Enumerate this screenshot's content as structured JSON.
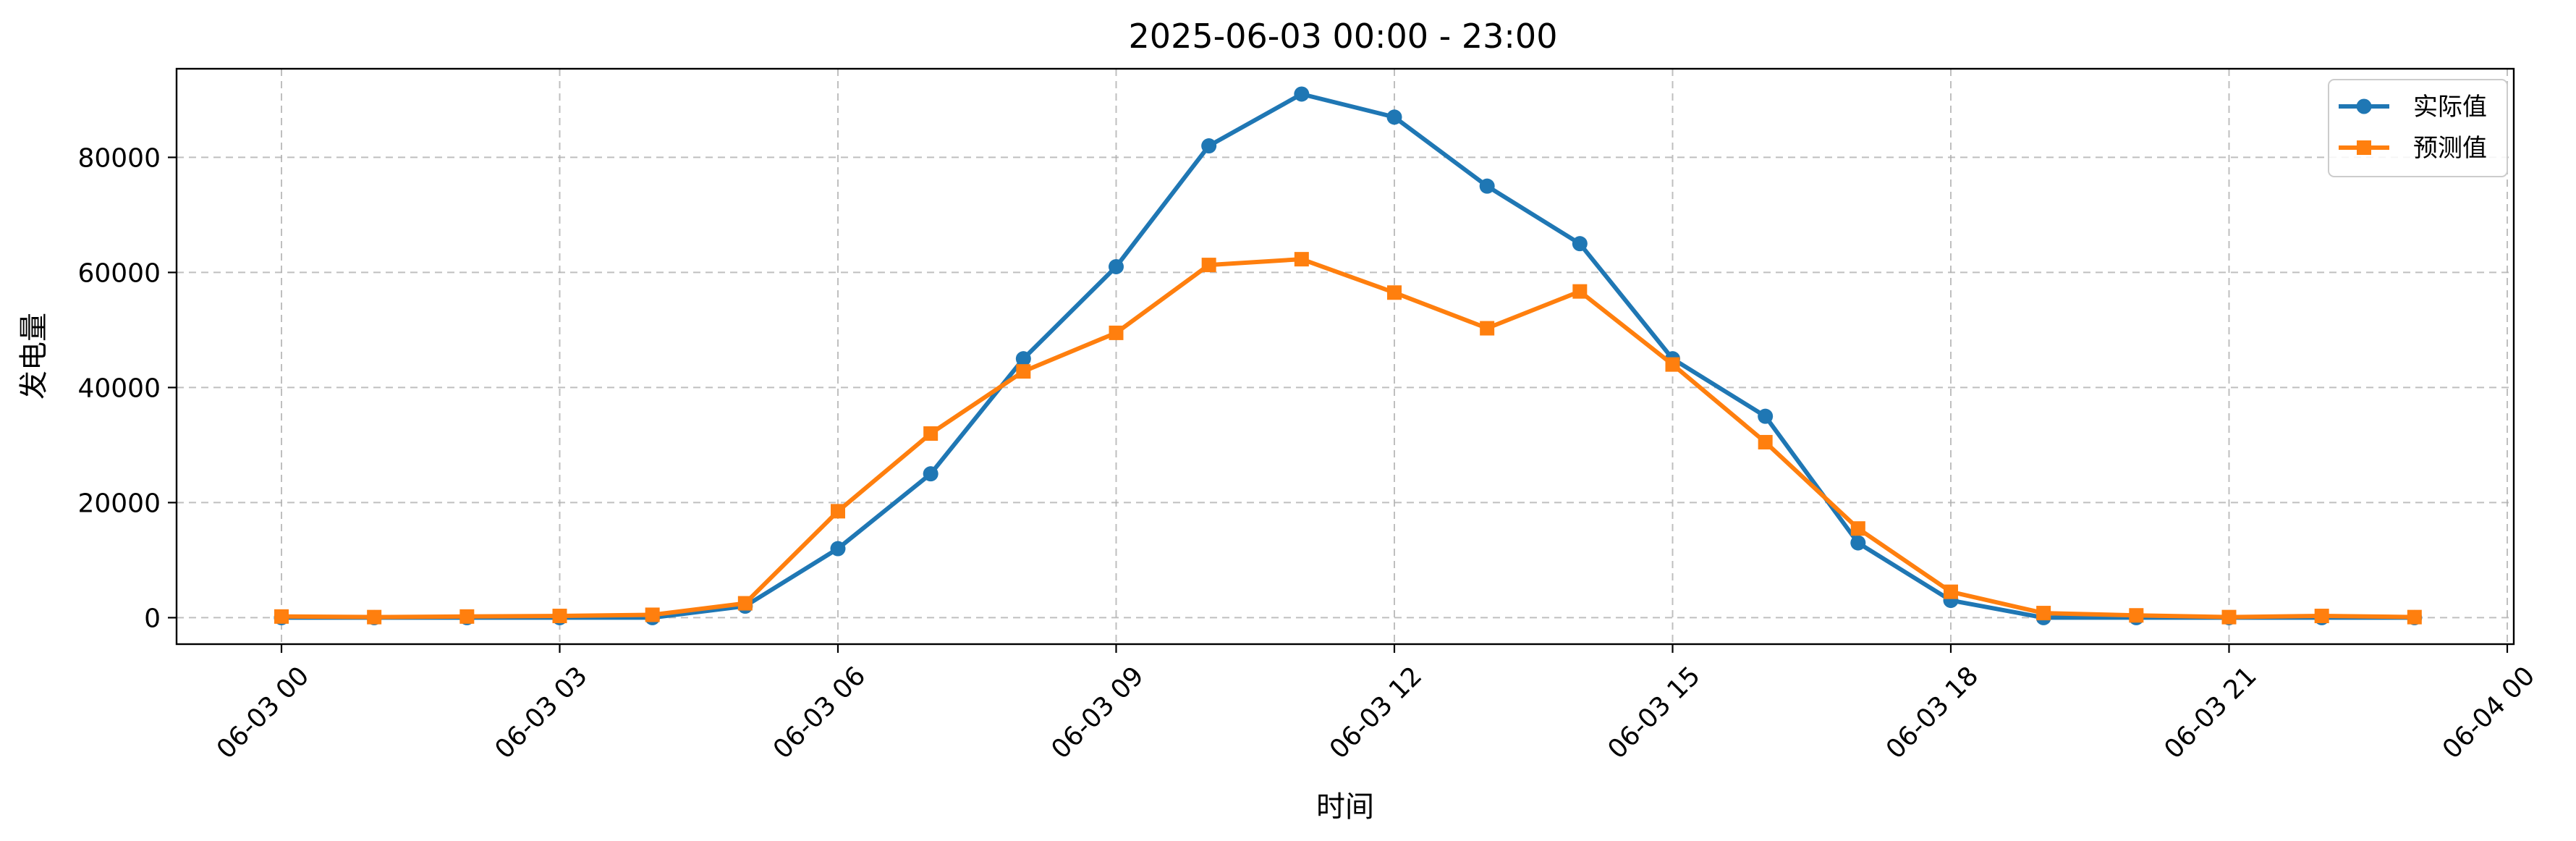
{
  "chart_data": {
    "type": "line",
    "title": "2025-06-03 00:00 - 23:00",
    "xlabel": "时间",
    "ylabel": "发电量",
    "x": [
      "00:00",
      "01:00",
      "02:00",
      "03:00",
      "04:00",
      "05:00",
      "06:00",
      "07:00",
      "08:00",
      "09:00",
      "10:00",
      "11:00",
      "12:00",
      "13:00",
      "14:00",
      "15:00",
      "16:00",
      "17:00",
      "18:00",
      "19:00",
      "20:00",
      "21:00",
      "22:00",
      "23:00"
    ],
    "x_range": [
      "06-03 00",
      "06-04 00"
    ],
    "x_ticks": [
      "06-03 00",
      "06-03 03",
      "06-03 06",
      "06-03 09",
      "06-03 12",
      "06-03 15",
      "06-03 18",
      "06-03 21",
      "06-04 00"
    ],
    "y_ticks": [
      "0",
      "20000",
      "40000",
      "60000",
      "80000"
    ],
    "ylim": [
      -4600,
      95400
    ],
    "grid": true,
    "legend_position": "top-right",
    "series": [
      {
        "name": "实际值",
        "color": "#1f77b4",
        "marker": "circle",
        "values": [
          0,
          0,
          0,
          0,
          0,
          2000,
          12000,
          25000,
          45000,
          61000,
          82000,
          91000,
          87000,
          75000,
          65000,
          45000,
          35000,
          13000,
          3000,
          0,
          0,
          0,
          0,
          0
        ]
      },
      {
        "name": "预测值",
        "color": "#ff7f0e",
        "marker": "square",
        "values": [
          200,
          100,
          200,
          300,
          500,
          2500,
          18500,
          32000,
          42800,
          49500,
          61300,
          62300,
          56500,
          50300,
          56700,
          44000,
          30500,
          15500,
          4500,
          800,
          400,
          100,
          300,
          100
        ]
      }
    ]
  }
}
